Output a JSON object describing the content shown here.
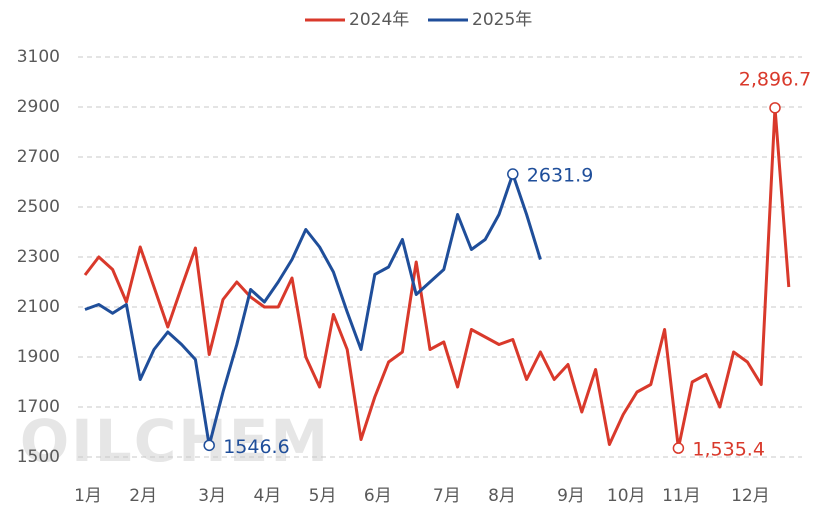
{
  "chart_data": {
    "type": "line",
    "categories": [
      "1月",
      null,
      null,
      null,
      "2月",
      null,
      null,
      null,
      null,
      "3月",
      null,
      null,
      null,
      "4月",
      null,
      null,
      null,
      "5月",
      null,
      null,
      null,
      "6月",
      null,
      null,
      null,
      null,
      "7月",
      null,
      null,
      null,
      "8月",
      null,
      null,
      null,
      null,
      "9月",
      null,
      null,
      null,
      "10月",
      null,
      null,
      null,
      "11月",
      null,
      null,
      null,
      null,
      "12月",
      null,
      null,
      null
    ],
    "series": [
      {
        "name": "2024年",
        "color": "#d9392b",
        "values": [
          2228,
          2300,
          2250,
          2120,
          2340,
          2180,
          2020,
          2180,
          2336,
          1910,
          2130,
          2200,
          2140,
          2100,
          2100,
          2216,
          1900,
          1780,
          2070,
          1930,
          1570,
          1740,
          1880,
          1920,
          2280,
          1930,
          1960,
          1780,
          2010,
          1980,
          1950,
          1970,
          1810,
          1920,
          1810,
          1870,
          1680,
          1850,
          1550,
          1670,
          1760,
          1790,
          2010,
          1535.4,
          1800,
          1830,
          1700,
          1920,
          1880,
          1790,
          2896.7,
          2180
        ],
        "value_labels": [
          null,
          null,
          null,
          null,
          null,
          null,
          null,
          null,
          null,
          null,
          null,
          null,
          null,
          null,
          null,
          null,
          null,
          null,
          null,
          null,
          null,
          null,
          null,
          null,
          null,
          null,
          null,
          null,
          null,
          null,
          null,
          null,
          null,
          null,
          null,
          null,
          null,
          null,
          null,
          null,
          null,
          null,
          null,
          "1,535.4",
          null,
          null,
          null,
          null,
          null,
          null,
          "2,896.7",
          null
        ]
      },
      {
        "name": "2025年",
        "color": "#1f4e9a",
        "values": [
          2090,
          2110,
          2075,
          2110,
          1810,
          1930,
          2000,
          1950,
          1890,
          1546.6,
          1760,
          1950,
          2170,
          2120,
          2200,
          2290,
          2410,
          2340,
          2240,
          2080,
          1930,
          2230,
          2260,
          2370,
          2150,
          2200,
          2250,
          2470,
          2330,
          2370,
          2470,
          2631.9,
          2470,
          2290,
          null,
          null,
          null,
          null,
          null,
          null,
          null,
          null,
          null,
          null,
          null,
          null,
          null,
          null,
          null,
          null,
          null,
          null
        ],
        "value_labels": [
          null,
          null,
          null,
          null,
          null,
          null,
          null,
          null,
          null,
          "1546.6",
          null,
          null,
          null,
          null,
          null,
          null,
          null,
          null,
          null,
          null,
          null,
          null,
          null,
          null,
          null,
          null,
          null,
          null,
          null,
          null,
          null,
          "2631.9",
          null,
          null,
          null,
          null,
          null,
          null,
          null,
          null,
          null,
          null,
          null,
          null,
          null,
          null,
          null,
          null,
          null,
          null,
          null,
          null
        ]
      }
    ],
    "ylim": [
      1500,
      3100
    ],
    "yticks": [
      1500,
      1700,
      1900,
      2100,
      2300,
      2500,
      2700,
      2900,
      3100
    ],
    "grid": true,
    "legend": "top",
    "watermark": "OILCHEM"
  }
}
